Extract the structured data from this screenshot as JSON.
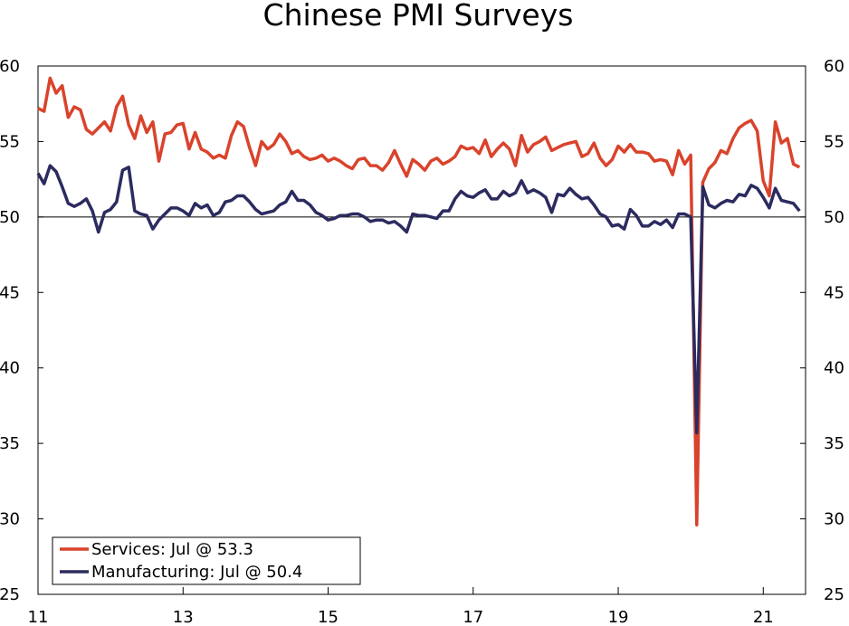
{
  "chart_data": {
    "type": "line",
    "title": "Chinese PMI Surveys",
    "xlabel": "",
    "ylabel": "",
    "ylim": [
      25,
      60
    ],
    "xlim": [
      2011.0,
      2021.583
    ],
    "yticks": [
      "25",
      "30",
      "35",
      "40",
      "45",
      "50",
      "55",
      "60"
    ],
    "xticks": [
      "11",
      "13",
      "15",
      "17",
      "19",
      "21"
    ],
    "x_tick_values": [
      2011,
      2013,
      2015,
      2017,
      2019,
      2021
    ],
    "reference_line": 50,
    "grid": false,
    "secondary_y_axis": true,
    "legend_position": "bottom-left",
    "x_start": 2011.0,
    "x_step": 0.08333,
    "series": [
      {
        "name": "Services: Jul @ 53.3",
        "color": "#d9432c",
        "values": [
          57.2,
          57.0,
          59.2,
          58.2,
          58.7,
          56.6,
          57.3,
          57.1,
          55.8,
          55.5,
          55.9,
          56.3,
          55.7,
          57.3,
          58.0,
          56.1,
          55.2,
          56.7,
          55.6,
          56.3,
          53.7,
          55.5,
          55.6,
          56.1,
          56.2,
          54.5,
          55.6,
          54.5,
          54.3,
          53.9,
          54.1,
          53.9,
          55.4,
          56.3,
          56.0,
          54.6,
          53.4,
          55.0,
          54.5,
          54.8,
          55.5,
          55.0,
          54.2,
          54.4,
          54.0,
          53.8,
          53.9,
          54.1,
          53.7,
          53.9,
          53.7,
          53.4,
          53.2,
          53.8,
          53.9,
          53.4,
          53.4,
          53.1,
          53.6,
          54.4,
          53.5,
          52.7,
          53.8,
          53.5,
          53.1,
          53.7,
          53.9,
          53.5,
          53.7,
          54.0,
          54.7,
          54.5,
          54.6,
          54.2,
          55.1,
          54.0,
          54.5,
          54.9,
          54.5,
          53.4,
          55.4,
          54.3,
          54.8,
          55.0,
          55.3,
          54.4,
          54.6,
          54.8,
          54.9,
          55.0,
          54.0,
          54.2,
          54.9,
          53.9,
          53.4,
          53.8,
          54.7,
          54.3,
          54.8,
          54.3,
          54.3,
          54.2,
          53.7,
          53.8,
          53.7,
          52.8,
          54.4,
          53.5,
          54.1,
          29.6,
          52.3,
          53.2,
          53.6,
          54.4,
          54.2,
          55.2,
          55.9,
          56.2,
          56.4,
          55.7,
          52.4,
          51.4,
          56.3,
          54.9,
          55.2,
          53.5,
          53.3
        ]
      },
      {
        "name": "Manufacturing: Jul @ 50.4",
        "color": "#2b2b5f",
        "values": [
          52.9,
          52.2,
          53.4,
          53.0,
          52.0,
          50.9,
          50.7,
          50.9,
          51.2,
          50.4,
          49.0,
          50.3,
          50.5,
          51.0,
          53.1,
          53.3,
          50.4,
          50.2,
          50.1,
          49.2,
          49.8,
          50.2,
          50.6,
          50.6,
          50.4,
          50.1,
          50.9,
          50.6,
          50.8,
          50.1,
          50.3,
          51.0,
          51.1,
          51.4,
          51.4,
          51.0,
          50.5,
          50.2,
          50.3,
          50.4,
          50.8,
          51.0,
          51.7,
          51.1,
          51.1,
          50.8,
          50.3,
          50.1,
          49.8,
          49.9,
          50.1,
          50.1,
          50.2,
          50.2,
          50.0,
          49.7,
          49.8,
          49.8,
          49.6,
          49.7,
          49.4,
          49.0,
          50.2,
          50.1,
          50.1,
          50.0,
          49.9,
          50.4,
          50.4,
          51.2,
          51.7,
          51.4,
          51.3,
          51.6,
          51.8,
          51.2,
          51.2,
          51.7,
          51.4,
          51.6,
          52.4,
          51.6,
          51.8,
          51.6,
          51.3,
          50.3,
          51.5,
          51.4,
          51.9,
          51.5,
          51.2,
          51.3,
          50.8,
          50.2,
          50.0,
          49.4,
          49.5,
          49.2,
          50.5,
          50.1,
          49.4,
          49.4,
          49.7,
          49.5,
          49.8,
          49.3,
          50.2,
          50.2,
          50.0,
          35.7,
          52.0,
          50.8,
          50.6,
          50.9,
          51.1,
          51.0,
          51.5,
          51.4,
          52.1,
          51.9,
          51.3,
          50.6,
          51.9,
          51.1,
          51.0,
          50.9,
          50.4
        ]
      }
    ]
  }
}
